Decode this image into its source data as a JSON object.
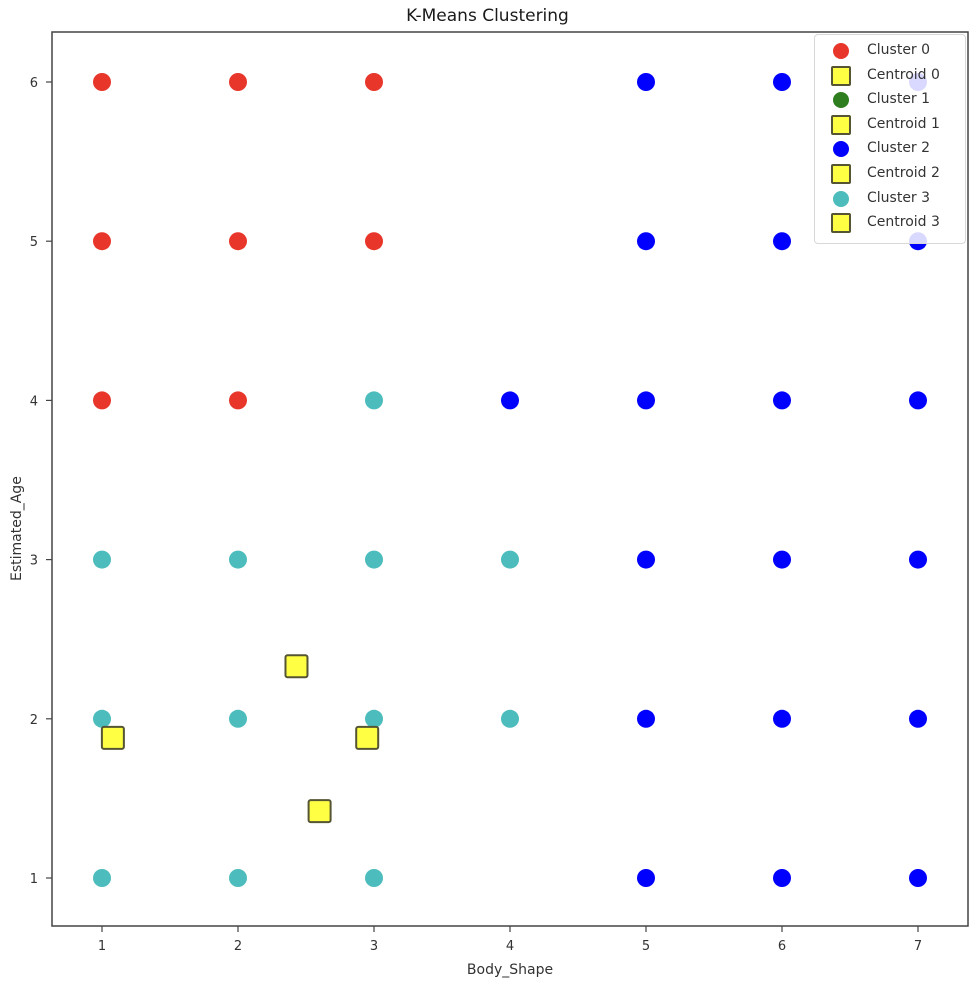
{
  "chart_data": {
    "type": "scatter",
    "title": "K-Means Clustering",
    "xlabel": "Body_Shape",
    "ylabel": "Estimated_Age",
    "xlim": [
      0.63,
      7.37
    ],
    "ylim": [
      0.69,
      6.31
    ],
    "xticks": [
      1,
      2,
      3,
      4,
      5,
      6,
      7
    ],
    "yticks": [
      1,
      2,
      3,
      4,
      5,
      6
    ],
    "grid": false,
    "legend_position": "upper right",
    "series": [
      {
        "name": "Cluster 0",
        "marker": "circle",
        "color": "#e8372a",
        "points": [
          [
            1,
            6
          ],
          [
            2,
            6
          ],
          [
            3,
            6
          ],
          [
            1,
            5
          ],
          [
            2,
            5
          ],
          [
            3,
            5
          ],
          [
            1,
            4
          ],
          [
            2,
            4
          ]
        ]
      },
      {
        "name": "Cluster 1",
        "marker": "circle",
        "color": "#2e7d1f",
        "points": []
      },
      {
        "name": "Cluster 2",
        "marker": "circle",
        "color": "#0000ff",
        "points": [
          [
            5,
            6
          ],
          [
            6,
            6
          ],
          [
            7,
            6
          ],
          [
            5,
            5
          ],
          [
            6,
            5
          ],
          [
            7,
            5
          ],
          [
            4,
            4
          ],
          [
            5,
            4
          ],
          [
            6,
            4
          ],
          [
            7,
            4
          ],
          [
            5,
            3
          ],
          [
            6,
            3
          ],
          [
            7,
            3
          ],
          [
            5,
            2
          ],
          [
            6,
            2
          ],
          [
            7,
            2
          ],
          [
            5,
            1
          ],
          [
            6,
            1
          ],
          [
            7,
            1
          ]
        ]
      },
      {
        "name": "Cluster 3",
        "marker": "circle",
        "color": "#4cbcbc",
        "points": [
          [
            3,
            4
          ],
          [
            1,
            3
          ],
          [
            2,
            3
          ],
          [
            3,
            3
          ],
          [
            4,
            3
          ],
          [
            1,
            2
          ],
          [
            2,
            2
          ],
          [
            3,
            2
          ],
          [
            4,
            2
          ],
          [
            1,
            1
          ],
          [
            2,
            1
          ],
          [
            3,
            1
          ]
        ]
      }
    ],
    "centroids": [
      {
        "name": "Centroid 0",
        "x": 1.08,
        "y": 1.88
      },
      {
        "name": "Centroid 1",
        "x": 2.43,
        "y": 2.33
      },
      {
        "name": "Centroid 2",
        "x": 2.95,
        "y": 1.88
      },
      {
        "name": "Centroid 3",
        "x": 2.6,
        "y": 1.42
      }
    ],
    "centroid_style": {
      "marker": "square",
      "fill": "#ffff44",
      "edge": "#555533"
    }
  },
  "legend": {
    "items": [
      {
        "label": "Cluster 0",
        "type": "circle",
        "color": "#e8372a"
      },
      {
        "label": "Centroid 0",
        "type": "square",
        "color": "#ffff44"
      },
      {
        "label": "Cluster 1",
        "type": "circle",
        "color": "#2e7d1f"
      },
      {
        "label": "Centroid 1",
        "type": "square",
        "color": "#ffff44"
      },
      {
        "label": "Cluster 2",
        "type": "circle",
        "color": "#0000ff"
      },
      {
        "label": "Centroid 2",
        "type": "square",
        "color": "#ffff44"
      },
      {
        "label": "Cluster 3",
        "type": "circle",
        "color": "#4cbcbc"
      },
      {
        "label": "Centroid 3",
        "type": "square",
        "color": "#ffff44"
      }
    ]
  }
}
